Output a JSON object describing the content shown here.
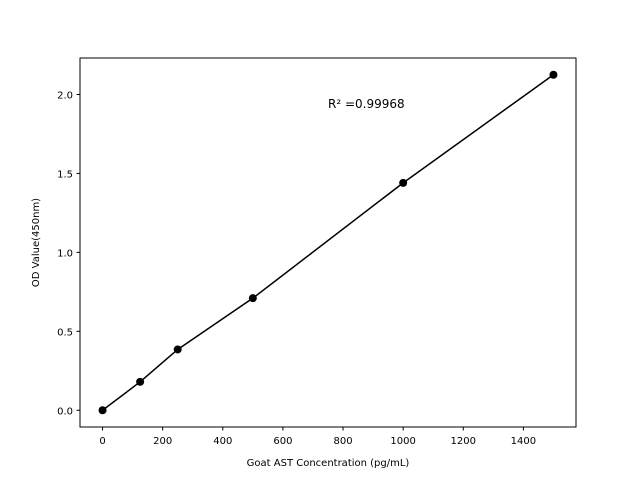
{
  "chart_data": {
    "type": "line",
    "x_label": "Goat AST Concentration (pg/mL)",
    "y_label": "OD Value(450nm)",
    "annotation": "R² =0.99968",
    "series": [
      {
        "color": "#000000",
        "x": [
          0,
          125,
          250,
          500,
          1000,
          1500
        ],
        "values": [
          0,
          0.18,
          0.385,
          0.71,
          1.44,
          2.125
        ]
      }
    ],
    "markers": true,
    "xlim": [
      -75,
      1575
    ],
    "xticks": [
      0,
      200,
      400,
      600,
      800,
      1000,
      1200,
      1400
    ],
    "ylim": [
      -0.106,
      2.231
    ],
    "yticks": [
      {
        "value": 0,
        "label": "0.0"
      },
      0.5,
      {
        "value": 1,
        "label": "1.0"
      },
      1.5,
      {
        "value": 2,
        "label": "2.0"
      }
    ],
    "grid": false
  }
}
